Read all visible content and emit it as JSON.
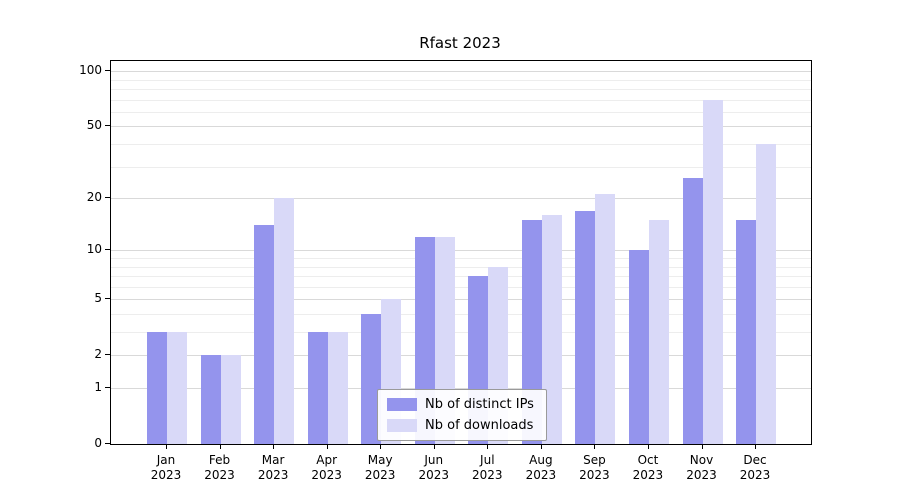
{
  "chart_data": {
    "type": "bar",
    "title": "Rfast 2023",
    "categories": [
      "Jan",
      "Feb",
      "Mar",
      "Apr",
      "May",
      "Jun",
      "Jul",
      "Aug",
      "Sep",
      "Oct",
      "Nov",
      "Dec"
    ],
    "year_label": "2023",
    "series": [
      {
        "name": "Nb of distinct IPs",
        "color": "#9494ed",
        "values": [
          3,
          2,
          14,
          3,
          4,
          12,
          7,
          15,
          17,
          10,
          26,
          15
        ]
      },
      {
        "name": "Nb of downloads",
        "color": "#d9d9f8",
        "values": [
          3,
          2,
          20,
          3,
          5,
          12,
          8,
          16,
          21,
          15,
          70,
          40
        ]
      }
    ],
    "yticks": [
      0,
      1,
      2,
      5,
      10,
      20,
      50,
      100
    ],
    "minor_gridlines": [
      3,
      4,
      6,
      7,
      8,
      9,
      30,
      40,
      60,
      70,
      80,
      90
    ],
    "scale": "log10(1+x)",
    "ylim": [
      0,
      113
    ],
    "grid": true,
    "legend_position": "inside-bottom-center",
    "xlabel": "",
    "ylabel": ""
  }
}
